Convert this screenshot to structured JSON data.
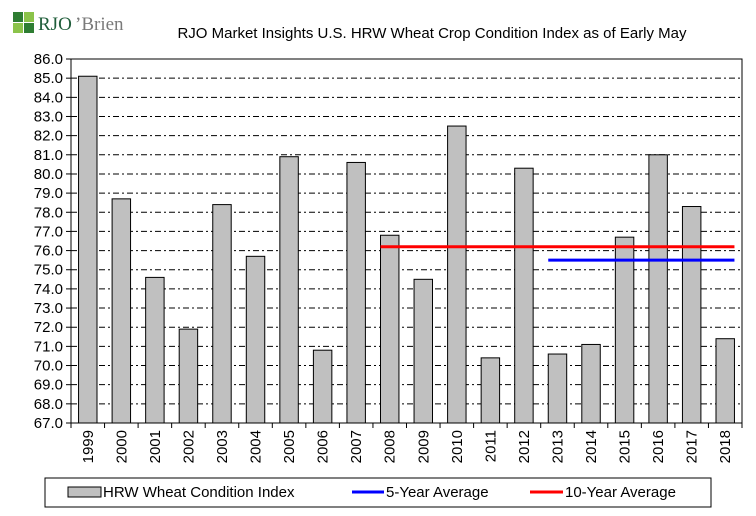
{
  "brand": {
    "name_primary": "RJO",
    "name_secondary": "’Brien"
  },
  "chart_data": {
    "type": "bar",
    "title": "RJO Market Insights U.S. HRW Wheat Crop Condition Index as of Early May",
    "xlabel": "",
    "ylabel": "",
    "ylim": [
      67.0,
      86.0
    ],
    "ytick_step": 1.0,
    "ytick_labels": [
      "67.0",
      "68.0",
      "69.0",
      "70.0",
      "71.0",
      "72.0",
      "73.0",
      "74.0",
      "75.0",
      "76.0",
      "77.0",
      "78.0",
      "79.0",
      "80.0",
      "81.0",
      "82.0",
      "83.0",
      "84.0",
      "85.0",
      "86.0"
    ],
    "grid": true,
    "legend_position": "bottom",
    "categories": [
      "1999",
      "2000",
      "2001",
      "2002",
      "2003",
      "2004",
      "2005",
      "2006",
      "2007",
      "2008",
      "2009",
      "2010",
      "2011",
      "2012",
      "2013",
      "2014",
      "2015",
      "2016",
      "2017",
      "2018"
    ],
    "series": [
      {
        "name": "HRW Wheat Condition Index",
        "kind": "bar",
        "color": "#c0c0c0",
        "values": [
          85.1,
          78.7,
          74.6,
          71.9,
          78.4,
          75.7,
          80.9,
          70.8,
          80.6,
          76.8,
          74.5,
          82.5,
          70.4,
          80.3,
          70.6,
          71.1,
          76.7,
          81.0,
          78.3,
          71.4
        ]
      },
      {
        "name": "5-Year Average",
        "kind": "line",
        "color": "#0000ff",
        "value": 75.5,
        "from": "2013",
        "to": "2018"
      },
      {
        "name": "10-Year Average",
        "kind": "line",
        "color": "#ff0000",
        "value": 76.2,
        "from": "2008",
        "to": "2018"
      }
    ]
  }
}
